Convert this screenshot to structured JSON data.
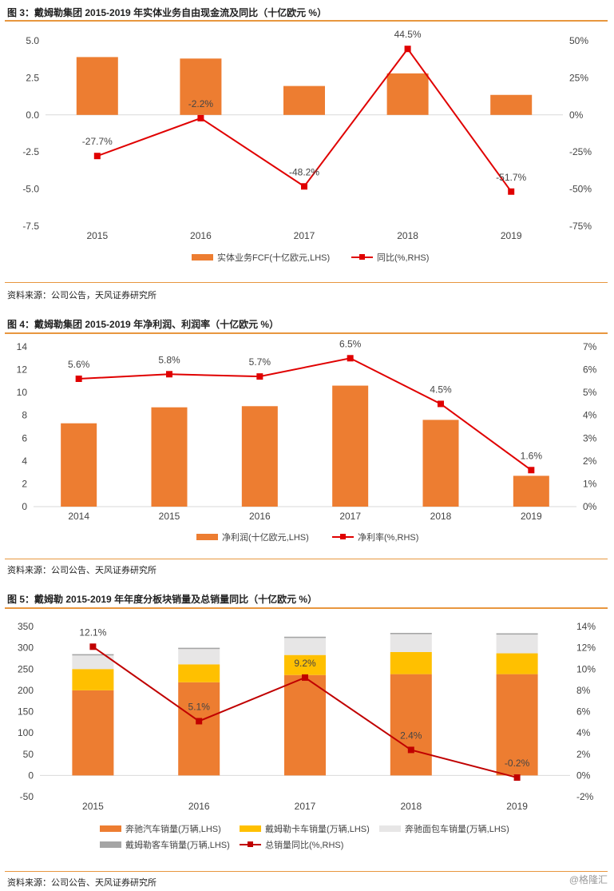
{
  "figures": [
    {
      "title": "图 3：戴姆勒集团 2015-2019 年实体业务自由现金流及同比（十亿欧元 %）",
      "source": "资料来源：公司公告，天风证券研究所"
    },
    {
      "title": "图 4：戴姆勒集团 2015-2019 年净利润、利润率（十亿欧元 %）",
      "source": "资料来源：公司公告、天风证券研究所"
    },
    {
      "title": "图 5：戴姆勒 2015-2019 年年度分板块销量及总销量同比（十亿欧元 %）",
      "source": "资料来源：公司公告、天风证券研究所"
    }
  ],
  "watermark": "@格隆汇",
  "colors": {
    "orange": "#ED7D31",
    "yellow": "#FFC000",
    "light_gray": "#E7E6E6",
    "gray": "#A5A5A5",
    "red": "#E00000",
    "dark_red": "#C00000",
    "rule": "#E8973F"
  },
  "chart_data": [
    {
      "type": "bar",
      "categories": [
        "2015",
        "2016",
        "2017",
        "2018",
        "2019"
      ],
      "series": [
        {
          "name": "实体业务FCF(十亿欧元,LHS)",
          "type": "bar",
          "axis": "left",
          "values": [
            3.9,
            3.8,
            1.95,
            2.8,
            1.35
          ]
        },
        {
          "name": "同比(%,RHS)",
          "type": "line",
          "axis": "right",
          "values": [
            -27.7,
            -2.2,
            -48.2,
            44.5,
            -51.7
          ],
          "labels": [
            "-27.7%",
            "-2.2%",
            "-48.2%",
            "44.5%",
            "-51.7%"
          ]
        }
      ],
      "y_left": {
        "min": -7.5,
        "max": 5.0,
        "ticks": [
          "5.0",
          "2.5",
          "0.0",
          "-2.5",
          "-5.0",
          "-7.5"
        ]
      },
      "y_right": {
        "min": -75,
        "max": 50,
        "ticks": [
          "50%",
          "25%",
          "0%",
          "-25%",
          "-50%",
          "-75%"
        ]
      },
      "legend_position": "bottom",
      "grid": false
    },
    {
      "type": "bar",
      "categories": [
        "2014",
        "2015",
        "2016",
        "2017",
        "2018",
        "2019"
      ],
      "series": [
        {
          "name": "净利润(十亿欧元,LHS)",
          "type": "bar",
          "axis": "left",
          "values": [
            7.3,
            8.7,
            8.8,
            10.6,
            7.6,
            2.7
          ]
        },
        {
          "name": "净利率(%,RHS)",
          "type": "line",
          "axis": "right",
          "values": [
            5.6,
            5.8,
            5.7,
            6.5,
            4.5,
            1.6
          ],
          "labels": [
            "5.6%",
            "5.8%",
            "5.7%",
            "6.5%",
            "4.5%",
            "1.6%"
          ]
        }
      ],
      "y_left": {
        "min": 0,
        "max": 14,
        "ticks": [
          "14",
          "12",
          "10",
          "8",
          "6",
          "4",
          "2",
          "0"
        ]
      },
      "y_right": {
        "min": 0,
        "max": 7,
        "ticks": [
          "7%",
          "6%",
          "5%",
          "4%",
          "3%",
          "2%",
          "1%",
          "0%"
        ]
      },
      "legend_position": "bottom",
      "grid": false
    },
    {
      "type": "bar",
      "stacked": true,
      "categories": [
        "2015",
        "2016",
        "2017",
        "2018",
        "2019"
      ],
      "series": [
        {
          "name": "奔驰汽车销量(万辆,LHS)",
          "type": "bar",
          "axis": "left",
          "values": [
            200,
            219,
            236,
            238,
            238
          ]
        },
        {
          "name": "戴姆勒卡车销量(万辆,LHS)",
          "type": "bar",
          "axis": "left",
          "values": [
            50,
            42,
            47,
            52,
            49
          ]
        },
        {
          "name": "奔驰面包车销量(万辆,LHS)",
          "type": "bar",
          "axis": "left",
          "values": [
            32,
            36,
            40,
            42,
            44
          ]
        },
        {
          "name": "戴姆勒客车销量(万辆,LHS)",
          "type": "bar",
          "axis": "left",
          "values": [
            3,
            3,
            3,
            3,
            3
          ]
        },
        {
          "name": "总销量同比(%,RHS)",
          "type": "line",
          "axis": "right",
          "values": [
            12.1,
            5.1,
            9.2,
            2.4,
            -0.2
          ],
          "labels": [
            "12.1%",
            "5.1%",
            "9.2%",
            "2.4%",
            "-0.2%"
          ]
        }
      ],
      "y_left": {
        "min": -50,
        "max": 350,
        "ticks": [
          "350",
          "300",
          "250",
          "200",
          "150",
          "100",
          "50",
          "0",
          "-50"
        ]
      },
      "y_right": {
        "min": -2,
        "max": 14,
        "ticks": [
          "14%",
          "12%",
          "10%",
          "8%",
          "6%",
          "4%",
          "2%",
          "0%",
          "-2%"
        ]
      },
      "legend_position": "bottom",
      "grid": false
    }
  ]
}
